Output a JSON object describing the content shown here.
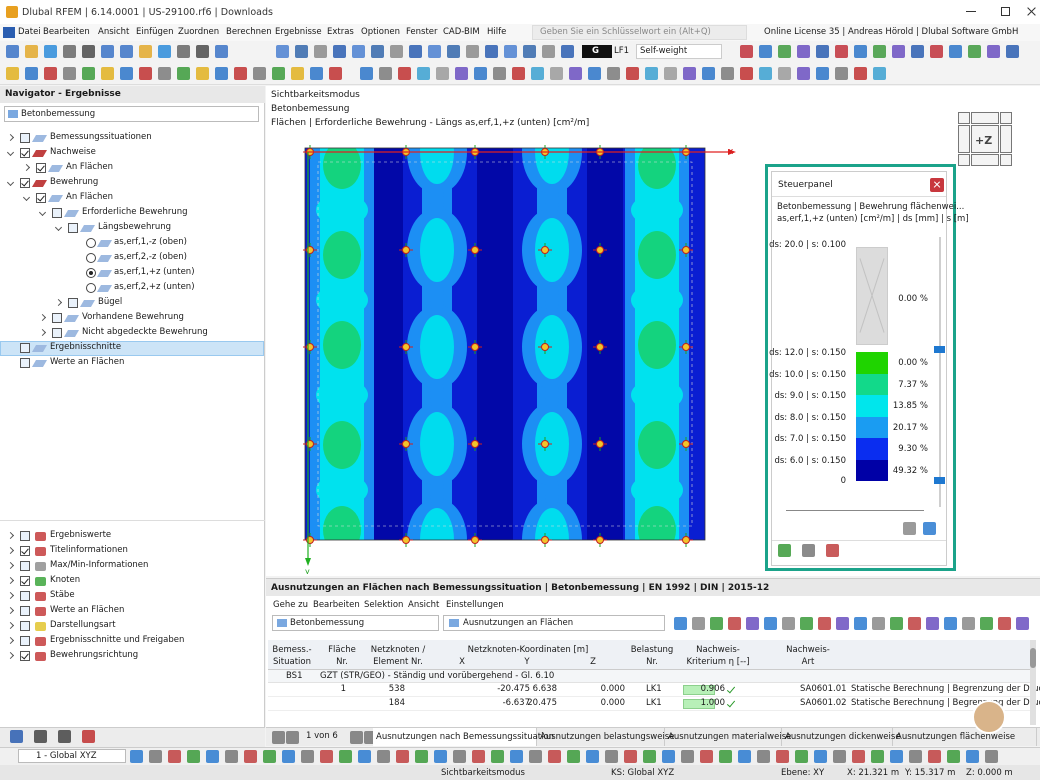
{
  "title_bar": {
    "title": "Dlubal RFEM | 6.14.0001 | US-29100.rf6 | Downloads"
  },
  "menu": {
    "items": [
      "Datei",
      "Bearbeiten",
      "Ansicht",
      "Einfügen",
      "Zuordnen",
      "Berechnen",
      "Ergebnisse",
      "Extras",
      "Optionen",
      "Fenster",
      "CAD-BIM",
      "Hilfe"
    ],
    "search": "Geben Sie ein Schlüsselwort ein (Alt+Q)",
    "license": "Online License 35 | Andreas Hörold | Dlubal Software GmbH"
  },
  "toolbar": {
    "load_type": "G",
    "load_case": "LF1",
    "load_name": "Self-weight"
  },
  "navigator": {
    "title": "Navigator - Ergebnisse",
    "module": "Betonbemessung",
    "tree": [
      "Bemessungssituationen",
      "Nachweise",
      "An Flächen",
      "Bewehrung",
      "An Flächen",
      "Erforderliche Bewehrung",
      "Längsbewehrung",
      "as,erf,1,-z (oben)",
      "as,erf,2,-z (oben)",
      "as,erf,1,+z (unten)",
      "as,erf,2,+z (unten)",
      "Bügel",
      "Vorhandene Bewehrung",
      "Nicht abgedeckte Bewehrung",
      "Ergebnisschnitte",
      "Werte an Flächen"
    ],
    "display": [
      "Ergebniswerte",
      "Titelinformationen",
      "Max/Min-Informationen",
      "Knoten",
      "Stäbe",
      "Werte an Flächen",
      "Darstellungsart",
      "Ergebnisschnitte und Freigaben",
      "Bewehrungsrichtung"
    ]
  },
  "viewport": {
    "header": [
      "Sichtbarkeitsmodus",
      "Betonbemessung",
      "Flächen | Erforderliche Bewehrung - Längs as,erf,1,+z (unten) [cm²/m]"
    ],
    "axis_x": "x",
    "axis_y": "y",
    "view_cube": "+Z"
  },
  "control_panel": {
    "title": "Steuerpanel",
    "subtitle": "Betonbemessung | Bewehrung flächenwei...",
    "units": "as,erf,1,+z (unten) [cm²/m] | ds [mm] | s [m]",
    "top_label": "ds: 20.0 | s: 0.100",
    "top_percent": "0.00 %",
    "rows": [
      {
        "label": "ds: 12.0 | s: 0.150",
        "percent": "0.00 %",
        "color": "#1fd400"
      },
      {
        "label": "ds: 10.0 | s: 0.150",
        "percent": "7.37 %",
        "color": "#12d98a"
      },
      {
        "label": "ds: 9.0 | s: 0.150",
        "percent": "13.85 %",
        "color": "#00e6ec"
      },
      {
        "label": "ds: 8.0 | s: 0.150",
        "percent": "20.17 %",
        "color": "#1a9cf2"
      },
      {
        "label": "ds: 7.0 | s: 0.150",
        "percent": "9.30 %",
        "color": "#0a2df0"
      },
      {
        "label": "ds: 6.0 | s: 0.150",
        "percent": "49.32 %",
        "color": "#0000a6"
      }
    ],
    "bottom_label": "0"
  },
  "table_panel": {
    "title": "Ausnutzungen an Flächen nach Bemessungssituation | Betonbemessung | EN 1992 | DIN | 2015-12",
    "menu": [
      "Gehe zu",
      "Bearbeiten",
      "Selektion",
      "Ansicht",
      "Einstellungen"
    ],
    "module": "Betonbemessung",
    "table_select": "Ausnutzungen an Flächen",
    "headers": [
      "Bemess.-",
      "Situation",
      "Fläche",
      "Nr.",
      "Netzknoten /",
      "Element Nr.",
      "Netzknoten-Koordinaten [m]",
      "X",
      "Y",
      "Z",
      "Belastung",
      "Nr.",
      "Nachweis-",
      "Kriterium η [--]",
      "Nachweis-",
      "Art"
    ],
    "group": {
      "id": "BS1",
      "label": "GZT (STR/GEO) - Ständig und vorübergehend - Gl. 6.10"
    },
    "rows": [
      [
        "1",
        "538",
        "-20.475",
        "6.638",
        "0.000",
        "LK1",
        "0.906",
        "SA0601.01",
        "Statische Berechnung | Begrenzung der Druckz"
      ],
      [
        "",
        "184",
        "-6.637",
        "20.475",
        "0.000",
        "LK1",
        "1.000",
        "SA0601.02",
        "Statische Berechnung | Begrenzung der Druckz"
      ]
    ],
    "pager": "1 von 6",
    "tabs": [
      "Ausnutzungen nach Bemessungssituation",
      "Ausnutzungen belastungsweise",
      "Ausnutzungen materialweise",
      "Ausnutzungen dickenweise",
      "Ausnutzungen flächenweise"
    ]
  },
  "status_bar": {
    "coordinate_system": "1 - Global XYZ",
    "items": [
      "Sichtbarkeitsmodus",
      "KS: Global XYZ",
      "Ebene: XY",
      "X: 21.321 m",
      "Y: 15.317 m",
      "Z: 0.000 m"
    ]
  }
}
